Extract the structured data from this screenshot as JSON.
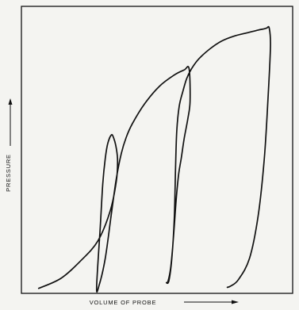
{
  "colors": {
    "background": "#f4f4f1",
    "ink": "#111111"
  },
  "chart_data": {
    "type": "line",
    "title": "",
    "xlabel": "VOLUME OF PROBE",
    "ylabel": "PRESSURE",
    "grid": false,
    "legend": "none",
    "tick_labels": false,
    "series": [
      {
        "x": [
          7.0,
          16.0,
          24.0,
          31.0,
          36.0,
          38.5,
          39.0,
          38.5,
          37.5,
          36.5,
          35.0,
          34.0,
          33.0,
          32.0,
          30.5,
          31.5,
          34.0,
          36.5,
          38.5,
          40.5,
          42.5,
          45.0,
          50.0,
          56.0,
          62.0,
          66.0,
          68.0,
          68.4,
          67.5,
          66.0,
          64.8,
          63.8,
          62.8,
          62.0,
          61.3,
          60.5,
          59.5,
          58.8,
          59.8,
          61.0,
          62.0,
          62.5,
          63.0,
          64.0,
          65.5,
          67.0,
          69.0,
          72.0,
          76.5,
          81.0,
          86.0,
          92.0,
          96.0,
          98.5,
          99.5,
          100.5,
          101.0,
          100.0,
          98.5,
          96.0,
          92.5,
          88.0,
          85.0,
          83.5
        ],
        "y": [
          2.0,
          6.0,
          13.0,
          21.0,
          33.0,
          45.0,
          53.0,
          58.0,
          62.0,
          63.5,
          60.0,
          54.0,
          44.0,
          27.0,
          2.6,
          3.2,
          14.0,
          32.0,
          46.0,
          56.0,
          62.5,
          68.0,
          76.0,
          83.0,
          87.5,
          89.5,
          90.0,
          77.0,
          70.0,
          62.0,
          54.0,
          48.0,
          38.0,
          27.0,
          18.0,
          10.0,
          5.0,
          4.3,
          5.0,
          14.0,
          30.0,
          50.0,
          65.0,
          75.0,
          81.0,
          86.0,
          90.0,
          94.0,
          98.0,
          101.0,
          103.0,
          104.5,
          105.5,
          106.0,
          106.3,
          106.3,
          99.0,
          78.0,
          54.0,
          31.0,
          14.0,
          5.5,
          3.0,
          2.4
        ]
      }
    ]
  }
}
